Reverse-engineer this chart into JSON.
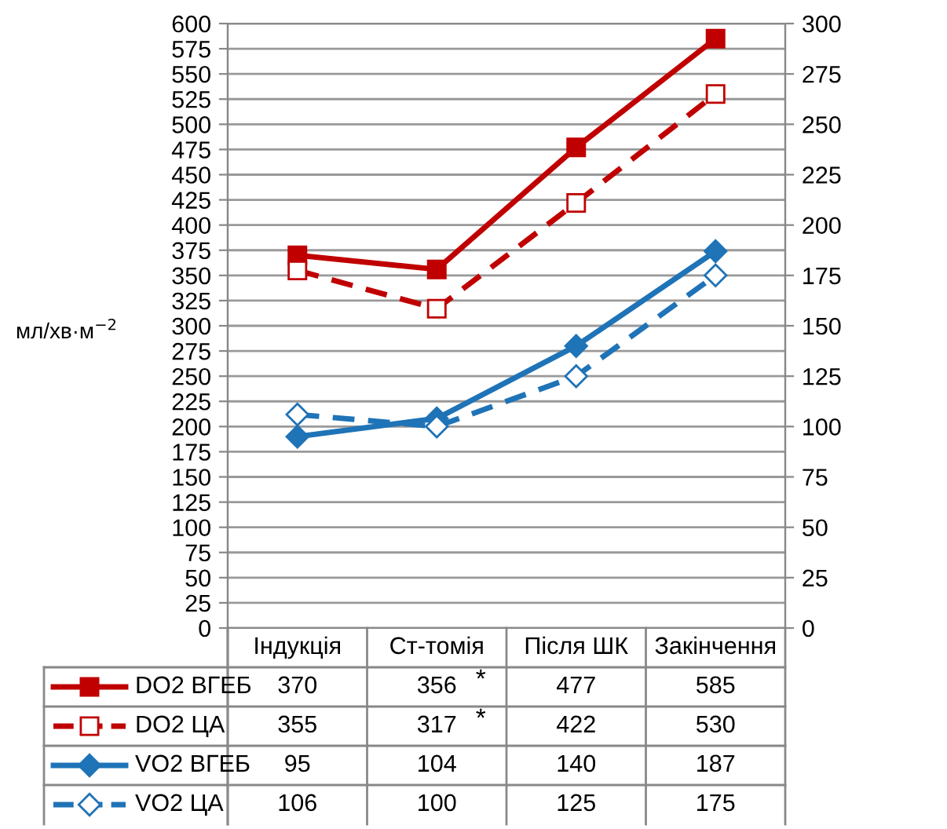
{
  "chart_data": {
    "type": "line",
    "ylabel": "мл/хв·м$^{−2}$",
    "categories": [
      "Індукція",
      "Ст-томія",
      "Після ШК",
      "Закінчення"
    ],
    "series": [
      {
        "name": "DO2 ВГЕБ",
        "color": "#c00000",
        "values": [
          370,
          356,
          477,
          585
        ],
        "marker": "square",
        "line_style": "solid"
      },
      {
        "name": "DO2 ЦА",
        "color": "#c00000",
        "values": [
          355,
          317,
          422,
          530
        ],
        "marker": "square",
        "line_style": "dashed"
      },
      {
        "name": "VO2 ВГЕБ",
        "color": "#1f73b7",
        "values": [
          95,
          104,
          140,
          187
        ],
        "marker": "diamond",
        "line_style": "solid",
        "axis": "y2"
      },
      {
        "name": "VO2 ЦА",
        "color": "#1f73b7",
        "values": [
          106,
          100,
          125,
          175
        ],
        "marker": "diamond",
        "line_style": "dashed",
        "axis": "y2"
      }
    ],
    "ylim": [
      0,
      600
    ],
    "yticks": [
      0,
      25,
      50,
      75,
      100,
      125,
      150,
      175,
      200,
      225,
      250,
      275,
      300,
      325,
      350,
      375,
      400,
      425,
      450,
      475,
      500,
      525,
      550,
      575,
      600
    ],
    "y2lim": [
      0,
      300
    ],
    "y2ticks": [
      0,
      25,
      50,
      75,
      100,
      125,
      150,
      175,
      200,
      225,
      250,
      275,
      300
    ],
    "grid": "y",
    "legend": "bottom",
    "data_labels": true,
    "annotations": [
      "*",
      "*"
    ]
  }
}
